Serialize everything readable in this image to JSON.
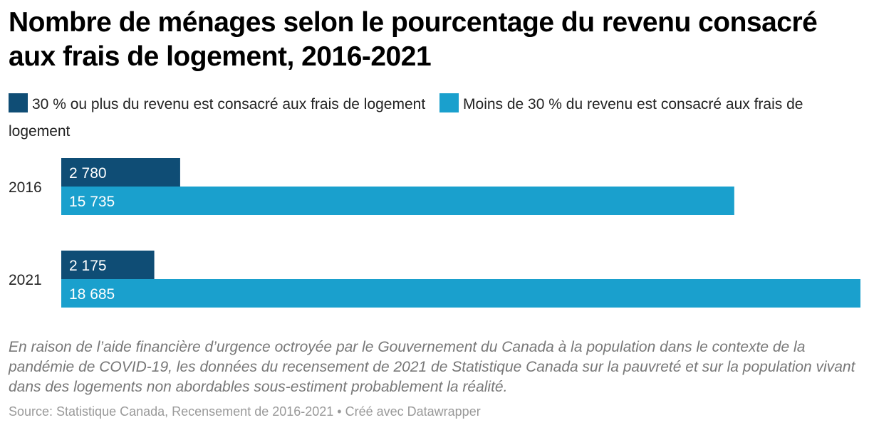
{
  "title": "Nombre de ménages selon le pourcentage du revenu consacré aux frais de logement, 2016-2021",
  "legend": [
    {
      "label": "30 % ou plus du revenu est consacré aux frais de logement",
      "color": "#0f4d75"
    },
    {
      "label": "Moins de 30 % du revenu est consacré aux frais de logement",
      "color": "#1aa0cd"
    }
  ],
  "chart_data": {
    "type": "bar",
    "orientation": "horizontal",
    "categories": [
      "2016",
      "2021"
    ],
    "series": [
      {
        "name": "30 % ou plus du revenu est consacré aux frais de logement",
        "values": [
          2780,
          2175
        ],
        "labels": [
          "2 780",
          "2 175"
        ],
        "color": "#0f4d75"
      },
      {
        "name": "Moins de 30 % du revenu est consacré aux frais de logement",
        "values": [
          15735,
          18685
        ],
        "labels": [
          "15 735",
          "18 685"
        ],
        "color": "#1aa0cd"
      }
    ],
    "xlim": [
      0,
      18685
    ],
    "grid": false,
    "legend_position": "top"
  },
  "notes": "En raison de l’aide financière d’urgence octroyée par le Gouvernement du Canada à la population dans le contexte de la pandémie de COVID-19, les données du recensement de 2021 de Statistique Canada sur la pauvreté et sur la population vivant dans des logements non abordables sous-estiment probablement la réalité.",
  "source": "Source: Statistique Canada, Recensement de 2016-2021 • Créé avec Datawrapper"
}
